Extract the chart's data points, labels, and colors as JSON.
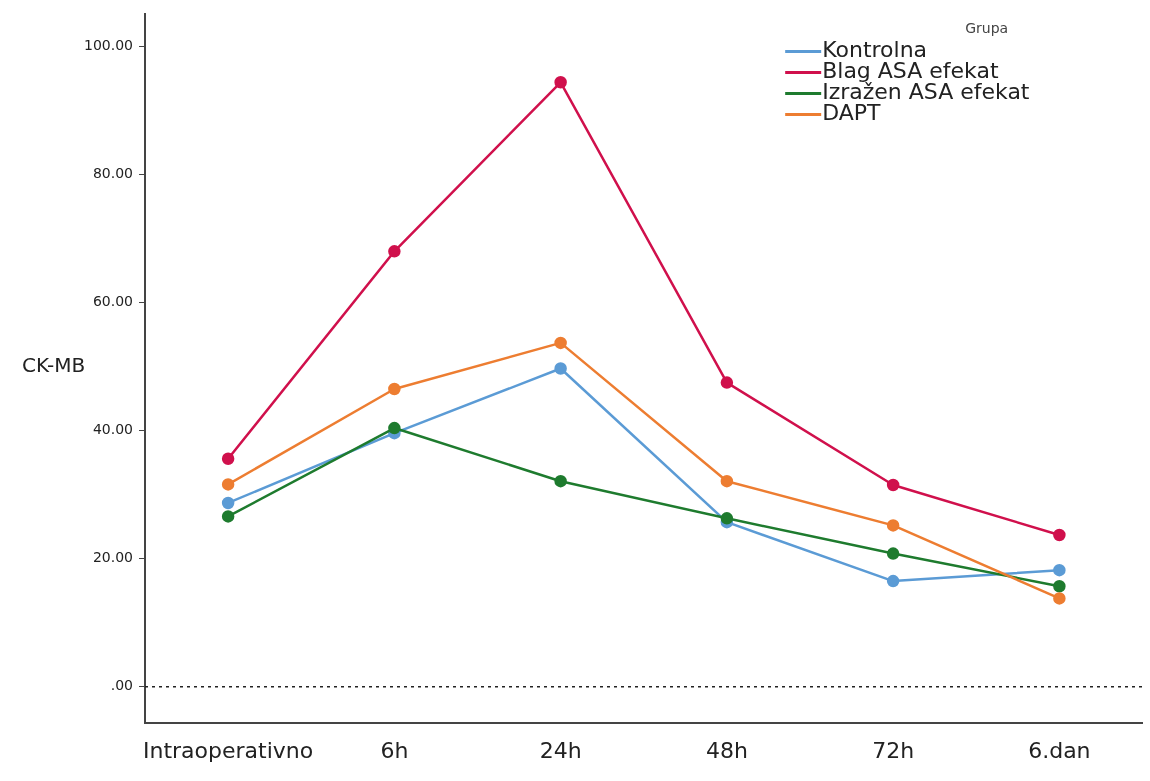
{
  "chart_data": {
    "type": "line",
    "ylabel": "CK-MB",
    "legend_title": "Grupa",
    "legend": "top right",
    "marker": "circle",
    "line_style": "solid",
    "grid": false,
    "categories": [
      "Intraoperativno",
      "6h",
      "24h",
      "48h",
      "72h",
      "6.dan"
    ],
    "ylim": [
      -5.6,
      105
    ],
    "yticks": [
      {
        "value": 0,
        "label": ".00"
      },
      {
        "value": 20,
        "label": "20.00"
      },
      {
        "value": 40,
        "label": "40.00"
      },
      {
        "value": 60,
        "label": "60.00"
      },
      {
        "value": 80,
        "label": "80.00"
      },
      {
        "value": 100,
        "label": "100.00"
      }
    ],
    "ref_lines": [
      {
        "axis": "y",
        "value": 0,
        "color": "#222222",
        "line_style": "dotted"
      }
    ],
    "series": [
      {
        "name": "Kontrolna",
        "color": "#5b9bd5",
        "values": [
          28.7,
          39.6,
          49.7,
          25.7,
          16.5,
          18.2
        ]
      },
      {
        "name": "Blag ASA efekat",
        "color": "#d0104c",
        "values": [
          35.6,
          68.0,
          94.4,
          47.5,
          31.5,
          23.7
        ]
      },
      {
        "name": "Izražen ASA efekat",
        "color": "#1e7b2e",
        "values": [
          26.6,
          40.4,
          32.1,
          26.3,
          20.8,
          15.7
        ]
      },
      {
        "name": "DAPT",
        "color": "#ed7d31",
        "values": [
          31.6,
          46.5,
          53.7,
          32.1,
          25.2,
          13.8
        ]
      }
    ]
  }
}
